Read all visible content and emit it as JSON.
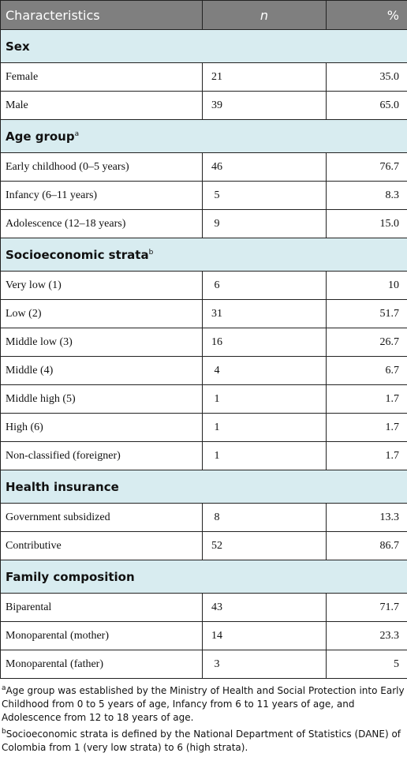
{
  "table": {
    "header": [
      "Characteristics",
      "n",
      "%"
    ],
    "sections": [
      {
        "title": "Sex",
        "rows": [
          [
            "Female",
            "21",
            "35.0"
          ],
          [
            "Male",
            "39",
            "65.0"
          ]
        ]
      },
      {
        "title": "Age group",
        "sup": "a",
        "rows": [
          [
            "Early childhood (0–5 years)",
            "46",
            "76.7"
          ],
          [
            "Infancy (6–11 years)",
            "5",
            "8.3"
          ],
          [
            "Adolescence (12–18 years)",
            "9",
            "15.0"
          ]
        ]
      },
      {
        "title": "Socioeconomic strata",
        "sup": "b",
        "rows": [
          [
            "Very low (1)",
            "6",
            "10"
          ],
          [
            "Low (2)",
            "31",
            "51.7"
          ],
          [
            "Middle low (3)",
            "16",
            "26.7"
          ],
          [
            "Middle (4)",
            "4",
            "6.7"
          ],
          [
            "Middle high (5)",
            "1",
            "1.7"
          ],
          [
            "High (6)",
            "1",
            "1.7"
          ],
          [
            "Non-classified (foreigner)",
            "1",
            "1.7"
          ]
        ]
      },
      {
        "title": "Health insurance",
        "rows": [
          [
            "Government subsidized",
            "8",
            "13.3"
          ],
          [
            "Contributive",
            "52",
            "86.7"
          ]
        ]
      },
      {
        "title": "Family composition",
        "rows": [
          [
            "Biparental",
            "43",
            "71.7"
          ],
          [
            "Monoparental (mother)",
            "14",
            "23.3"
          ],
          [
            "Monoparental (father)",
            "3",
            "5"
          ]
        ]
      }
    ]
  },
  "footnotes": [
    {
      "marker": "a",
      "text": "Age group was established by the Ministry of Health and Social Protection into Early Childhood from 0 to 5 years of age, Infancy from 6 to 11 years of age, and Adolescence from 12 to 18 years of age."
    },
    {
      "marker": "b",
      "text": "Socioeconomic strata is defined by the National Department of Statistics (DANE) of Colombia from 1 (very low strata) to 6 (high strata)."
    }
  ]
}
